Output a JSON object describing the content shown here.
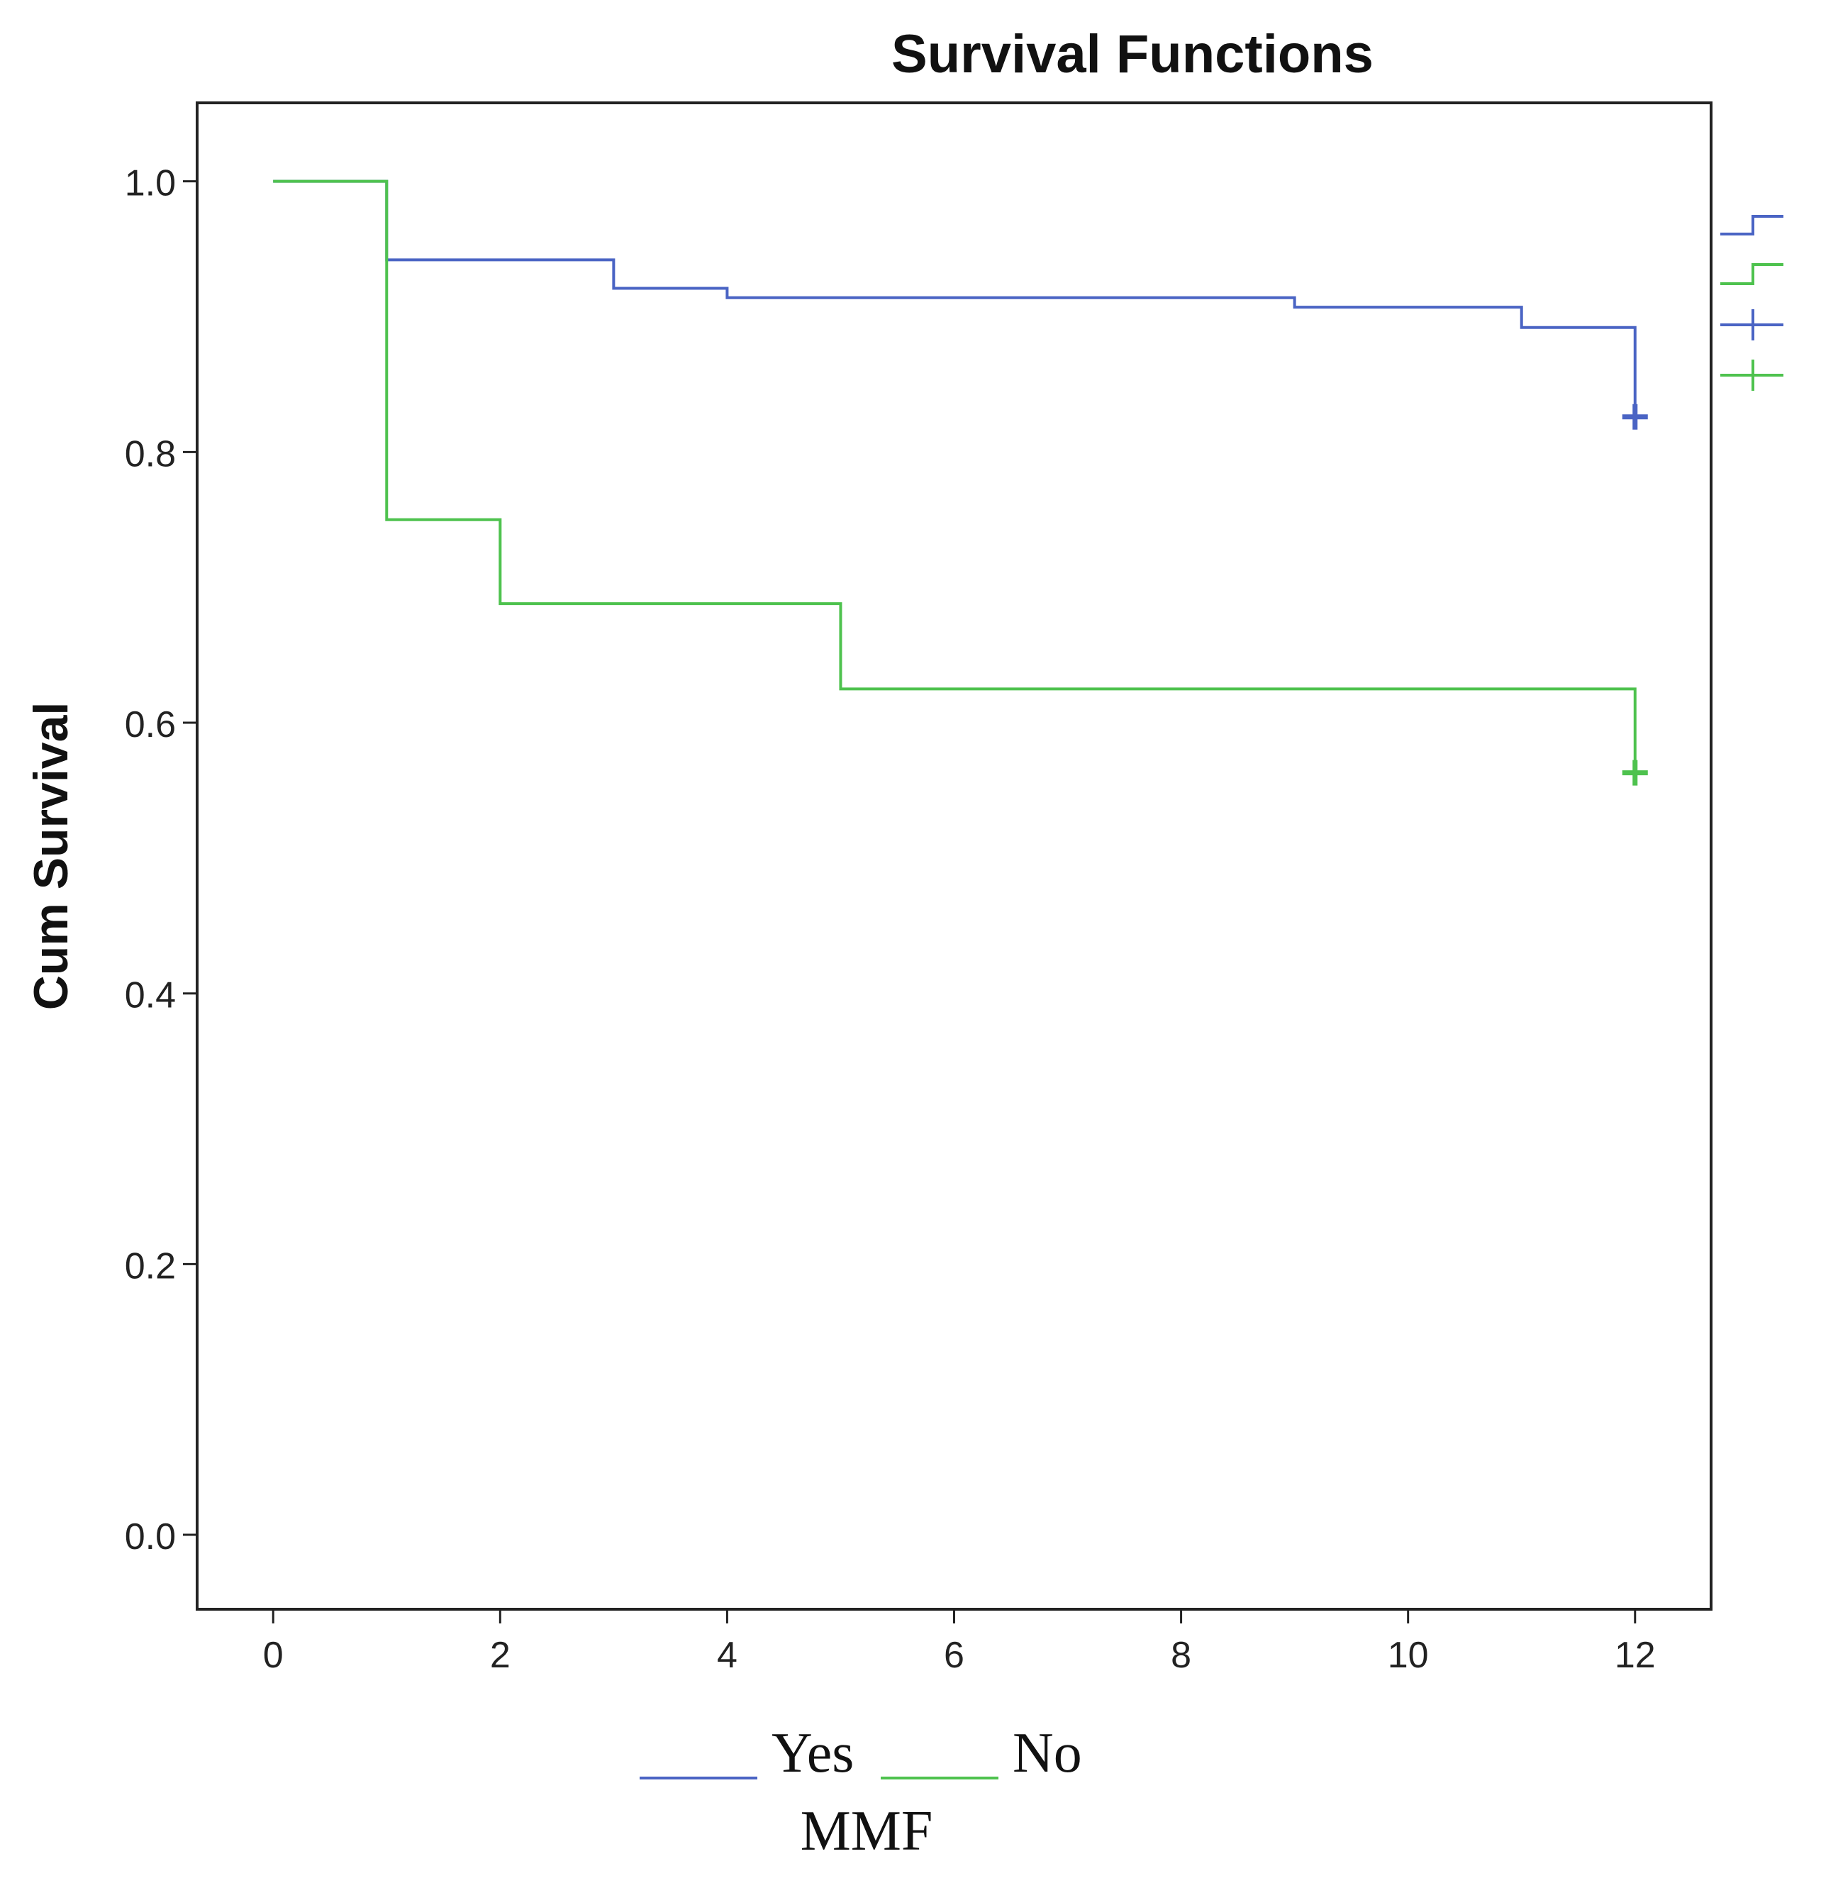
{
  "chart_data": {
    "type": "line",
    "title": "Survival Functions",
    "xlabel": "",
    "ylabel": "Cum Survival",
    "xlim": [
      -0.67,
      12.67
    ],
    "ylim": [
      -0.055,
      1.058
    ],
    "x_ticks": [
      0,
      2,
      4,
      6,
      8,
      10,
      12
    ],
    "y_ticks": [
      0.0,
      0.2,
      0.4,
      0.6,
      0.8,
      1.0
    ],
    "x_tick_labels": [
      "0",
      "2",
      "4",
      "6",
      "8",
      "10",
      "12"
    ],
    "y_tick_labels": [
      "0.0",
      "0.2",
      "0.4",
      "0.6",
      "0.8",
      "1.0"
    ],
    "grid": false,
    "legend_title": "MMF",
    "legend_position": "bottom",
    "series": [
      {
        "name": "Yes",
        "color": "#4a64c4",
        "step": true,
        "x": [
          0,
          1,
          3,
          4,
          9,
          11,
          12
        ],
        "y": [
          1.0,
          0.942,
          0.921,
          0.914,
          0.907,
          0.892,
          0.826
        ],
        "censored": [
          {
            "x": 12,
            "y": 0.826
          }
        ]
      },
      {
        "name": "No",
        "color": "#4ec24e",
        "step": true,
        "x": [
          0,
          1,
          2,
          5,
          12
        ],
        "y": [
          1.0,
          0.75,
          0.688,
          0.625,
          0.563
        ],
        "censored": [
          {
            "x": 12,
            "y": 0.563
          }
        ]
      }
    ]
  }
}
